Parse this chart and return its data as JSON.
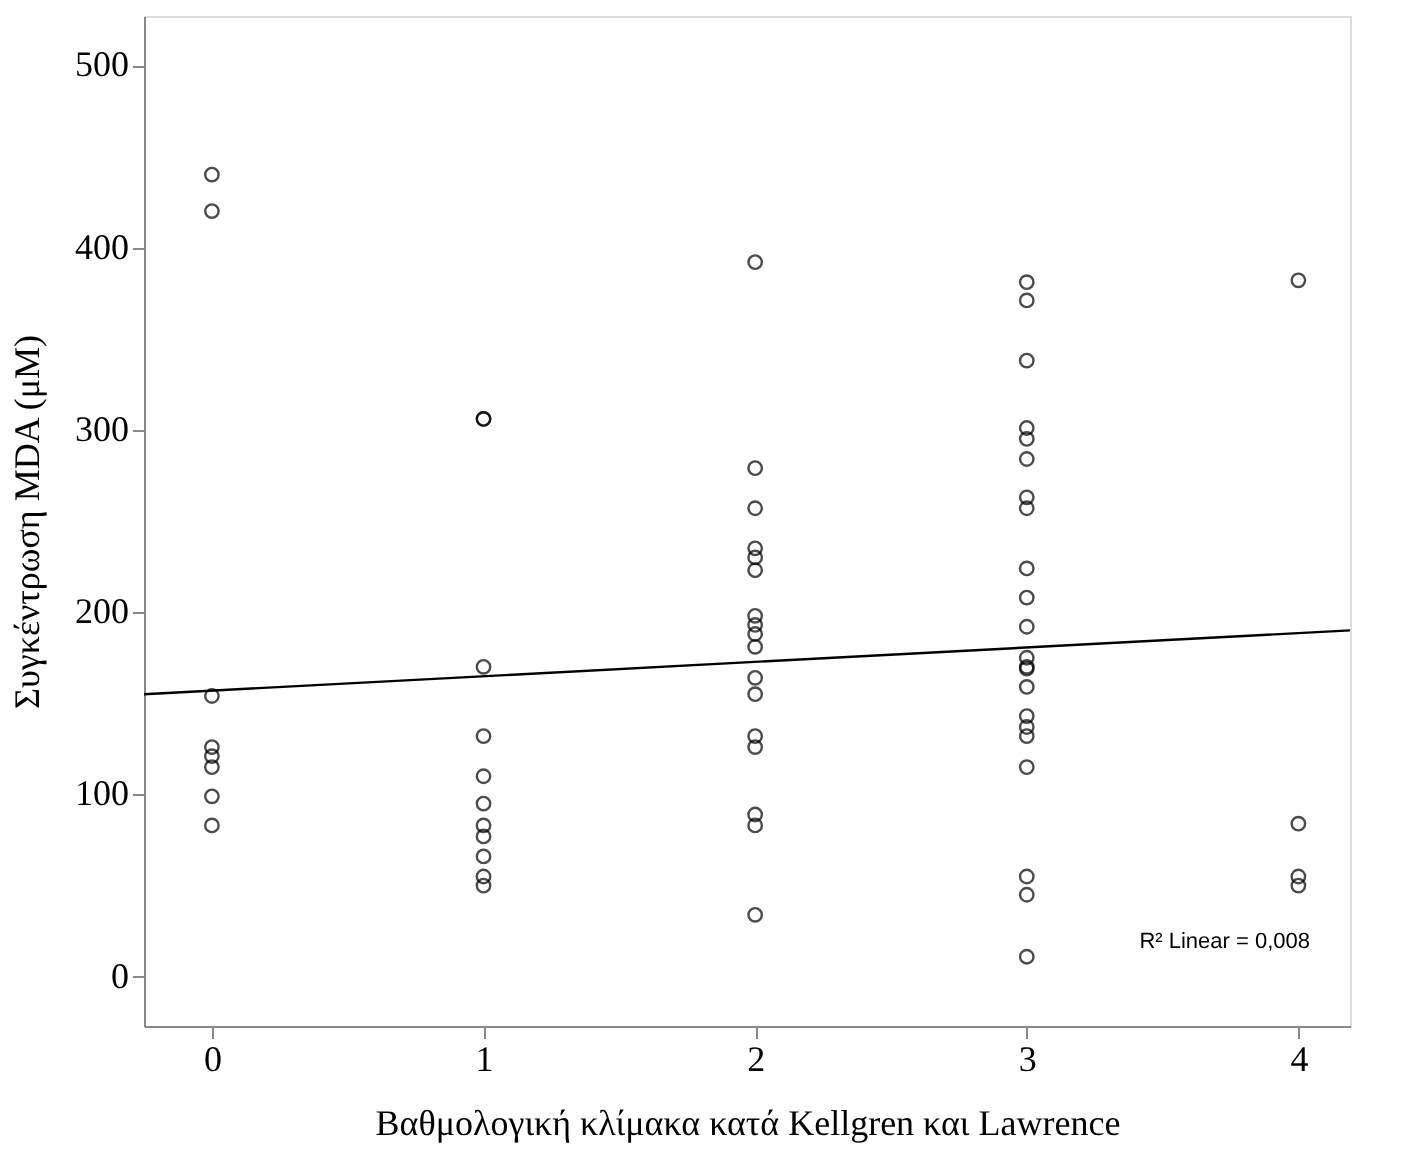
{
  "chart_data": {
    "type": "scatter",
    "xlabel": "Βαθμολογική κλίμακα κατά Kellgren και Lawrence",
    "ylabel": "Συγκέντρωση MDA (μM)",
    "xlim": [
      -0.25,
      4.19
    ],
    "xticks": [
      0,
      1,
      2,
      3,
      4
    ],
    "ylim": [
      -27,
      527
    ],
    "yticks": [
      0,
      100,
      200,
      300,
      400,
      500
    ],
    "grid": false,
    "annotations": [
      "R² Linear = 0,008"
    ],
    "series": [
      {
        "marker": "circle",
        "color": "#000000",
        "x": [
          0,
          0,
          0,
          0,
          0,
          0,
          0,
          0,
          1,
          1,
          1,
          1,
          1,
          1,
          1,
          1,
          1,
          1,
          1,
          2,
          2,
          2,
          2,
          2,
          2,
          2,
          2,
          2,
          2,
          2,
          2,
          2,
          2,
          2,
          2,
          2,
          3,
          3,
          3,
          3,
          3,
          3,
          3,
          3,
          3,
          3,
          3,
          3,
          3,
          3,
          3,
          3,
          3,
          3,
          3,
          3,
          3,
          3,
          4,
          4,
          4,
          4
        ],
        "values": [
          440,
          420,
          154,
          126,
          121,
          115,
          99,
          83,
          306,
          306,
          170,
          132,
          110,
          95,
          83,
          77,
          66,
          55,
          50,
          392,
          279,
          257,
          235,
          230,
          223,
          198,
          193,
          188,
          181,
          164,
          155,
          132,
          126,
          89,
          83,
          34,
          381,
          371,
          338,
          301,
          295,
          284,
          263,
          257,
          224,
          208,
          192,
          175,
          170,
          169,
          159,
          143,
          137,
          132,
          115,
          55,
          45,
          11,
          382,
          84,
          55,
          50
        ]
      },
      {
        "type": "line",
        "marker": "none",
        "color": "#000000",
        "line_style": "solid",
        "x": [
          -0.25,
          4.19
        ],
        "values": [
          155,
          190
        ]
      }
    ]
  }
}
